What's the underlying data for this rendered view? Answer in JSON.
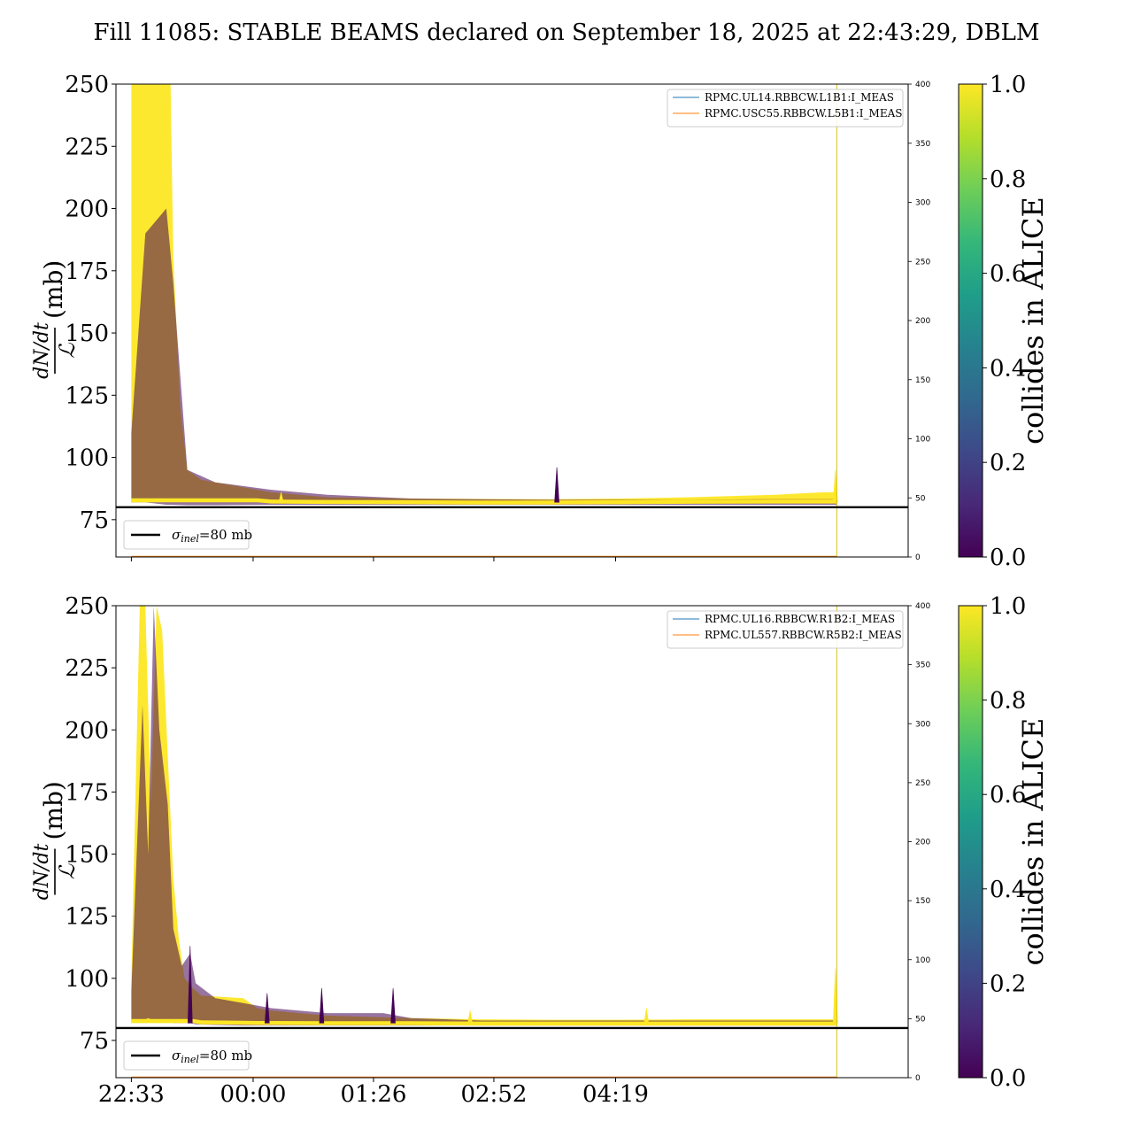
{
  "figure": {
    "title": "Fill 11085: STABLE BEAMS declared on September 18, 2025 at 22:43:29, DBLM"
  },
  "colors": {
    "viridis": [
      "#440154",
      "#482878",
      "#3e4989",
      "#31688e",
      "#26828e",
      "#1f9e89",
      "#35b779",
      "#6ece58",
      "#b5de2b",
      "#fde725"
    ],
    "reference_line": "#000000",
    "legend_blue": "#1f77b4",
    "legend_orange": "#ff7f0e",
    "vertical_marker": "#d4c21a"
  },
  "chart_data": [
    {
      "type": "line",
      "panel": "top",
      "ylabel_num": "dN/dt",
      "ylabel_den": "ℒ",
      "ylabel_unit": "(mb)",
      "ylim": [
        60,
        250
      ],
      "yticks": [
        "75",
        "100",
        "125",
        "150",
        "175",
        "200",
        "225",
        "250"
      ],
      "xticks": [
        "22:33",
        "00:00",
        "01:26",
        "02:52",
        "04:19"
      ],
      "show_xtick_labels": false,
      "secondary_ylim": [
        0,
        400
      ],
      "secondary_yticks": [
        "0",
        "50",
        "100",
        "150",
        "200",
        "250",
        "300",
        "350",
        "400"
      ],
      "legend_series": [
        {
          "name": "RPMC.UL14.RBBCW.L1B1:I_MEAS",
          "color": "#1f77b4"
        },
        {
          "name": "RPMC.USC55.RBBCW.L5B1:I_MEAS",
          "color": "#ff7f0e"
        }
      ],
      "reference_line": {
        "value": 80,
        "legend": "σinel=80 mb"
      },
      "colorbar": {
        "label": "collides in ALICE",
        "range": [
          0.0,
          1.0
        ],
        "ticks": [
          "0.0",
          "0.2",
          "0.4",
          "0.6",
          "0.8",
          "1.0"
        ]
      },
      "envelope_yellow": {
        "times_min": [
          0,
          22,
          26,
          28,
          30,
          35,
          40,
          50,
          80,
          90,
          100,
          140,
          200,
          250,
          300,
          350,
          400,
          460,
          495,
          504
        ],
        "upper": [
          250,
          250,
          250,
          250,
          180,
          120,
          95,
          91,
          88,
          87,
          86,
          84,
          83.5,
          83.3,
          83.2,
          83.5,
          84,
          85,
          86,
          86
        ],
        "lower": [
          82,
          82,
          82,
          82,
          82,
          82,
          82,
          82,
          82,
          82,
          81.5,
          81.3,
          81.2,
          81.1,
          81.1,
          81.2,
          81.4,
          81.5,
          81.5,
          81.5
        ]
      },
      "envelope_purple": {
        "times_min": [
          0,
          10,
          25,
          30,
          40,
          60,
          100,
          140,
          200,
          250,
          300,
          350,
          400,
          450,
          504
        ],
        "upper": [
          110,
          190,
          200,
          170,
          95,
          90,
          87,
          85,
          83.5,
          83.2,
          83,
          83,
          83,
          83.2,
          83.2
        ],
        "lower": [
          82,
          82,
          81,
          81,
          80.8,
          80.8,
          81,
          81,
          81,
          81,
          81,
          81,
          81,
          81,
          81
        ]
      },
      "spikes": [
        {
          "t_min": 304,
          "peak": 96,
          "colorvalue": 0.0
        },
        {
          "t_min": 107,
          "peak": 86,
          "colorvalue": 1.0
        },
        {
          "t_min": 503,
          "peak": 95,
          "colorvalue": 1.0
        }
      ],
      "vertical_marker_t_min": 504
    },
    {
      "type": "line",
      "panel": "bottom",
      "ylabel_num": "dN/dt",
      "ylabel_den": "ℒ",
      "ylabel_unit": "(mb)",
      "ylim": [
        60,
        250
      ],
      "yticks": [
        "75",
        "100",
        "125",
        "150",
        "175",
        "200",
        "225",
        "250"
      ],
      "xticks": [
        "22:33",
        "00:00",
        "01:26",
        "02:52",
        "04:19"
      ],
      "show_xtick_labels": true,
      "secondary_ylim": [
        0,
        400
      ],
      "secondary_yticks": [
        "0",
        "50",
        "100",
        "150",
        "200",
        "250",
        "300",
        "350",
        "400"
      ],
      "legend_series": [
        {
          "name": "RPMC.UL16.RBBCW.R1B2:I_MEAS",
          "color": "#1f77b4"
        },
        {
          "name": "RPMC.UL557.RBBCW.R5B2:I_MEAS",
          "color": "#ff7f0e"
        }
      ],
      "reference_line": {
        "value": 80,
        "legend": "σinel=80 mb"
      },
      "colorbar": {
        "label": "collides in ALICE",
        "range": [
          0.0,
          1.0
        ],
        "ticks": [
          "0.0",
          "0.2",
          "0.4",
          "0.6",
          "0.8",
          "1.0"
        ]
      },
      "envelope_yellow": {
        "times_min": [
          0,
          6,
          10,
          14,
          18,
          22,
          26,
          30,
          34,
          38,
          44,
          50,
          80,
          90,
          100,
          140,
          200,
          250,
          300,
          350,
          400,
          460,
          495,
          504
        ],
        "upper": [
          100,
          250,
          250,
          170,
          250,
          240,
          190,
          140,
          115,
          100,
          96,
          93,
          92,
          88,
          87,
          85,
          84,
          83.5,
          83.3,
          83.3,
          83.5,
          83.5,
          83.5,
          83.5
        ],
        "lower": [
          82,
          82,
          82,
          82,
          82,
          82,
          82,
          82,
          82,
          82,
          82,
          81.5,
          81.3,
          81.2,
          81.2,
          81.1,
          81.1,
          81,
          81,
          81,
          81,
          81,
          81,
          81
        ]
      },
      "envelope_purple": {
        "times_min": [
          0,
          8,
          12,
          16,
          20,
          26,
          30,
          36,
          42,
          46,
          60,
          80,
          100,
          140,
          180,
          200,
          250,
          300,
          400,
          504
        ],
        "upper": [
          95,
          210,
          150,
          250,
          200,
          170,
          120,
          105,
          110,
          98,
          92,
          90,
          88,
          86,
          86,
          84,
          83,
          83,
          83,
          83
        ],
        "lower": [
          82,
          83,
          84,
          83,
          83,
          83,
          82,
          82,
          82,
          81.5,
          81.2,
          81,
          81,
          81,
          81,
          81,
          81,
          81,
          81,
          81
        ]
      },
      "spikes": [
        {
          "t_min": 42,
          "peak": 113,
          "colorvalue": 0.0
        },
        {
          "t_min": 97,
          "peak": 94,
          "colorvalue": 0.0
        },
        {
          "t_min": 136,
          "peak": 96,
          "colorvalue": 0.0
        },
        {
          "t_min": 187,
          "peak": 96,
          "colorvalue": 0.0
        },
        {
          "t_min": 242,
          "peak": 87,
          "colorvalue": 1.0
        },
        {
          "t_min": 368,
          "peak": 88,
          "colorvalue": 1.0
        },
        {
          "t_min": 503,
          "peak": 104,
          "colorvalue": 1.0
        }
      ],
      "vertical_marker_t_min": 504
    }
  ]
}
